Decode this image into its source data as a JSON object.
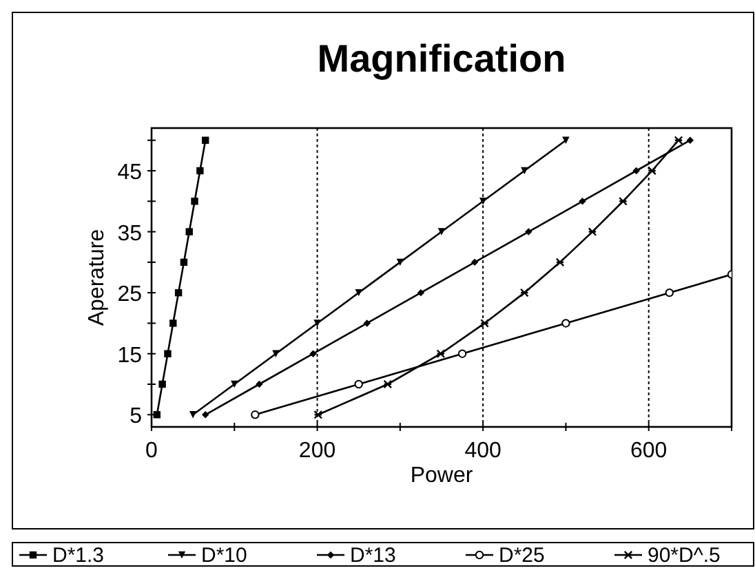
{
  "chart_data": {
    "type": "line",
    "title": "Magnification",
    "xlabel": "Power",
    "ylabel": "Aperature",
    "xlim": [
      0,
      700
    ],
    "ylim": [
      3,
      52
    ],
    "xticks": [
      0,
      {
        "value": 100,
        "label": null
      },
      200,
      {
        "value": 300,
        "label": null
      },
      400,
      {
        "value": 500,
        "label": null
      },
      600,
      {
        "value": 700,
        "label": null
      }
    ],
    "yticks": [
      5,
      {
        "value": 10,
        "label": null
      },
      15,
      {
        "value": 20,
        "label": null
      },
      25,
      {
        "value": 30,
        "label": null
      },
      35,
      {
        "value": 40,
        "label": null
      },
      45,
      {
        "value": 50,
        "label": null
      }
    ],
    "grid": "x",
    "legend": "bottom",
    "line_style": "solid",
    "series": [
      {
        "name": "D*1.3",
        "color": "#000000",
        "marker": "square",
        "x": [
          6.5,
          13,
          19.5,
          26,
          32.5,
          39,
          45.5,
          52,
          58.5,
          65
        ],
        "values": [
          5,
          10,
          15,
          20,
          25,
          30,
          35,
          40,
          45,
          50
        ]
      },
      {
        "name": "D*10",
        "color": "#000000",
        "marker": "triangle",
        "x": [
          50,
          100,
          150,
          200,
          250,
          300,
          350,
          400,
          450,
          500
        ],
        "values": [
          5,
          10,
          15,
          20,
          25,
          30,
          35,
          40,
          45,
          50
        ]
      },
      {
        "name": "D*13",
        "color": "#000000",
        "marker": "diamond",
        "x": [
          65,
          130,
          195,
          260,
          325,
          390,
          455,
          520,
          585,
          650
        ],
        "values": [
          5,
          10,
          15,
          20,
          25,
          30,
          35,
          40,
          45,
          50
        ]
      },
      {
        "name": "D*25",
        "color": "#000000",
        "marker": "circle",
        "x": [
          125,
          250,
          375,
          500,
          625,
          700
        ],
        "values": [
          5,
          10,
          15,
          20,
          25,
          28
        ]
      },
      {
        "name": "90*D^.5",
        "color": "#000000",
        "marker": "cross",
        "x": [
          201,
          285,
          349,
          402,
          450,
          493,
          532,
          569,
          604,
          636
        ],
        "values": [
          5,
          10,
          15,
          20,
          25,
          30,
          35,
          40,
          45,
          50
        ]
      }
    ]
  }
}
